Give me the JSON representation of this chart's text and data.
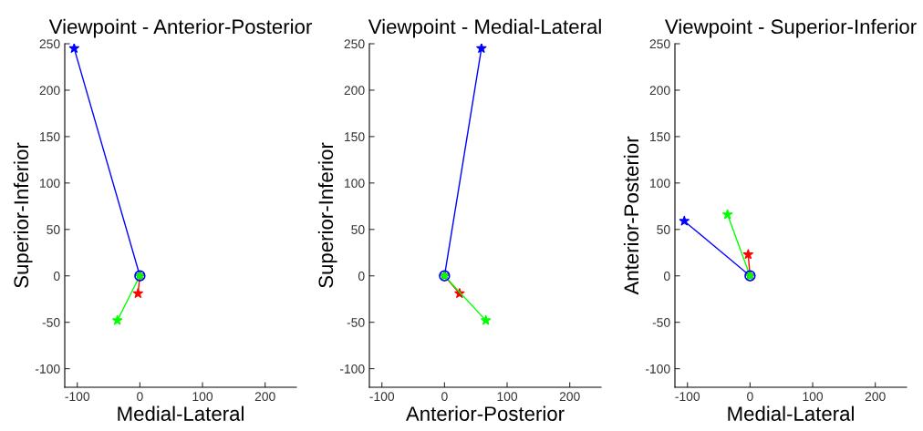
{
  "chart_data": [
    {
      "type": "line",
      "title": "Viewpoint - Anterior-Posterior",
      "xlabel": "Medial-Lateral",
      "ylabel": "Superior-Inferior",
      "xlim": [
        -120,
        250
      ],
      "ylim": [
        -120,
        250
      ],
      "xticks": [
        -100,
        0,
        100,
        200
      ],
      "yticks": [
        -100,
        -50,
        0,
        50,
        100,
        150,
        200,
        250
      ],
      "grid": false,
      "marker": "star",
      "series": [
        {
          "color": "#0000ff",
          "x": [
            0,
            -105
          ],
          "values": [
            0,
            245
          ]
        },
        {
          "color": "#ff0000",
          "x": [
            0,
            -3
          ],
          "values": [
            0,
            -19
          ]
        },
        {
          "color": "#00ff00",
          "x": [
            0,
            -36
          ],
          "values": [
            0,
            -48
          ]
        },
        {
          "type": "scatter",
          "marker": "circle",
          "color": "#0000ff",
          "x": [
            0
          ],
          "values": [
            0
          ]
        }
      ]
    },
    {
      "type": "line",
      "title": "Viewpoint - Medial-Lateral",
      "xlabel": "Anterior-Posterior",
      "ylabel": "Superior-Inferior",
      "xlim": [
        -120,
        250
      ],
      "ylim": [
        -120,
        250
      ],
      "xticks": [
        -100,
        0,
        100,
        200
      ],
      "yticks": [
        -100,
        -50,
        0,
        50,
        100,
        150,
        200,
        250
      ],
      "grid": false,
      "marker": "star",
      "series": [
        {
          "color": "#0000ff",
          "x": [
            0,
            59
          ],
          "values": [
            0,
            245
          ]
        },
        {
          "color": "#ff0000",
          "x": [
            0,
            24
          ],
          "values": [
            0,
            -19
          ]
        },
        {
          "color": "#00ff00",
          "x": [
            0,
            66
          ],
          "values": [
            0,
            -48
          ]
        },
        {
          "type": "scatter",
          "marker": "circle",
          "color": "#0000ff",
          "x": [
            0
          ],
          "values": [
            0
          ]
        }
      ]
    },
    {
      "type": "line",
      "title": "Viewpoint - Superior-Inferior",
      "xlabel": "Medial-Lateral",
      "ylabel": "Anterior-Posterior",
      "xlim": [
        -120,
        250
      ],
      "ylim": [
        -120,
        250
      ],
      "xticks": [
        -100,
        0,
        100,
        200
      ],
      "yticks": [
        -100,
        -50,
        0,
        50,
        100,
        150,
        200,
        250
      ],
      "grid": false,
      "marker": "star",
      "series": [
        {
          "color": "#0000ff",
          "x": [
            0,
            -105
          ],
          "values": [
            0,
            59
          ]
        },
        {
          "color": "#ff0000",
          "x": [
            0,
            -3
          ],
          "values": [
            0,
            23
          ]
        },
        {
          "color": "#00ff00",
          "x": [
            0,
            -36
          ],
          "values": [
            0,
            66
          ]
        },
        {
          "type": "scatter",
          "marker": "circle",
          "color": "#0000ff",
          "x": [
            0
          ],
          "values": [
            0
          ]
        }
      ]
    }
  ]
}
